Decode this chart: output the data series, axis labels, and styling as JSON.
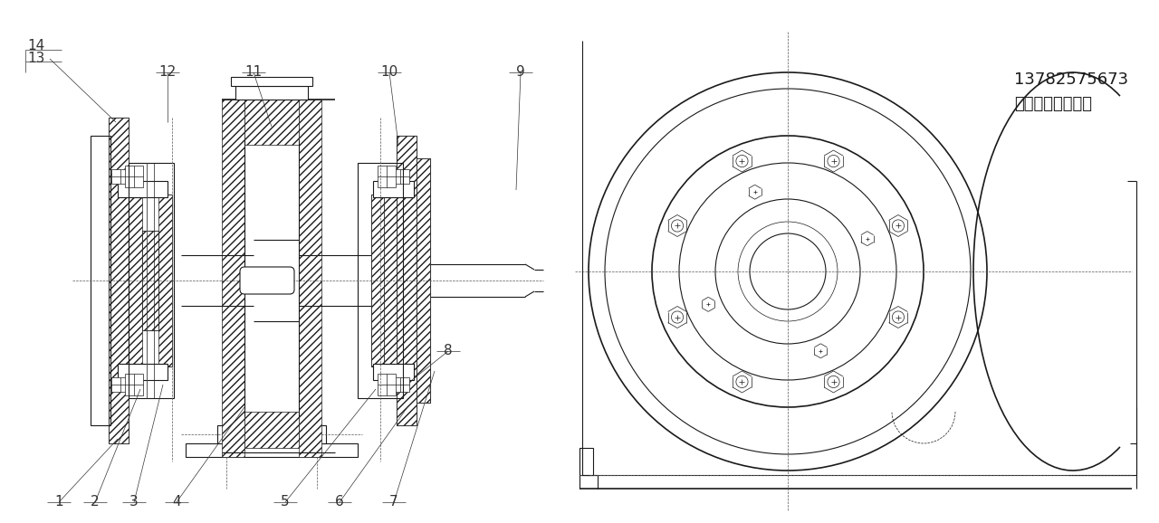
{
  "bg_color": "#ffffff",
  "line_color": "#1a1a1a",
  "label_color": "#1a1a1a",
  "company_line1": "河南中原奥起实业",
  "company_line2": "13782575673",
  "font_size_label": 11,
  "font_size_company": 13
}
